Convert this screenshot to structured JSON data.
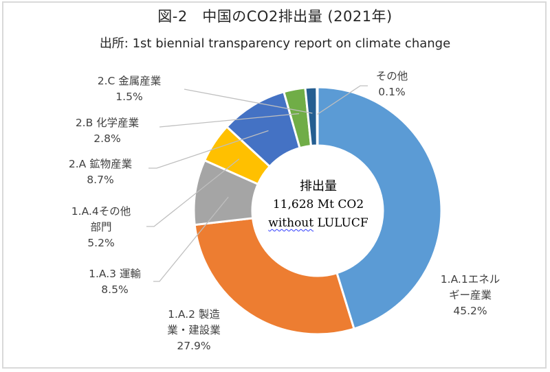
{
  "chart_data": {
    "type": "pie",
    "variant": "donut",
    "title": "図-2　中国のCO2排出量 (2021年)",
    "subtitle": "出所: 1st biennial transparency report on climate change",
    "center_text": {
      "line1": "排出量",
      "line2": "11,628 Mt CO2",
      "line3_a": "without",
      "line3_b": " LULUCF"
    },
    "start_angle_deg": 0,
    "direction": "clockwise",
    "slices": [
      {
        "id": "1a1",
        "name_lines": [
          "1.A.1エネル",
          "ギー産業"
        ],
        "value": 45.2,
        "label": "45.2%",
        "color": "#5b9bd5"
      },
      {
        "id": "1a2",
        "name_lines": [
          "1.A.2 製造",
          "業・建設業"
        ],
        "value": 27.9,
        "label": "27.9%",
        "color": "#ed7d31"
      },
      {
        "id": "1a3",
        "name_lines": [
          "1.A.3 運輸"
        ],
        "value": 8.5,
        "label": "8.5%",
        "color": "#a5a5a5"
      },
      {
        "id": "1a4",
        "name_lines": [
          "1.A.4その他",
          "部門"
        ],
        "value": 5.2,
        "label": "5.2%",
        "color": "#ffc000"
      },
      {
        "id": "2a",
        "name_lines": [
          "2.A 鉱物産業"
        ],
        "value": 8.7,
        "label": "8.7%",
        "color": "#4472c4"
      },
      {
        "id": "2b",
        "name_lines": [
          "2.B 化学産業"
        ],
        "value": 2.8,
        "label": "2.8%",
        "color": "#70ad47"
      },
      {
        "id": "2c",
        "name_lines": [
          "2.C 金属産業"
        ],
        "value": 1.5,
        "label": "1.5%",
        "color": "#255e91"
      },
      {
        "id": "other",
        "name_lines": [
          "その他"
        ],
        "value": 0.1,
        "label": "0.1%",
        "color": "#5b9bd5"
      }
    ],
    "leader_line_color": "#bfbfbf",
    "legend": "none"
  }
}
